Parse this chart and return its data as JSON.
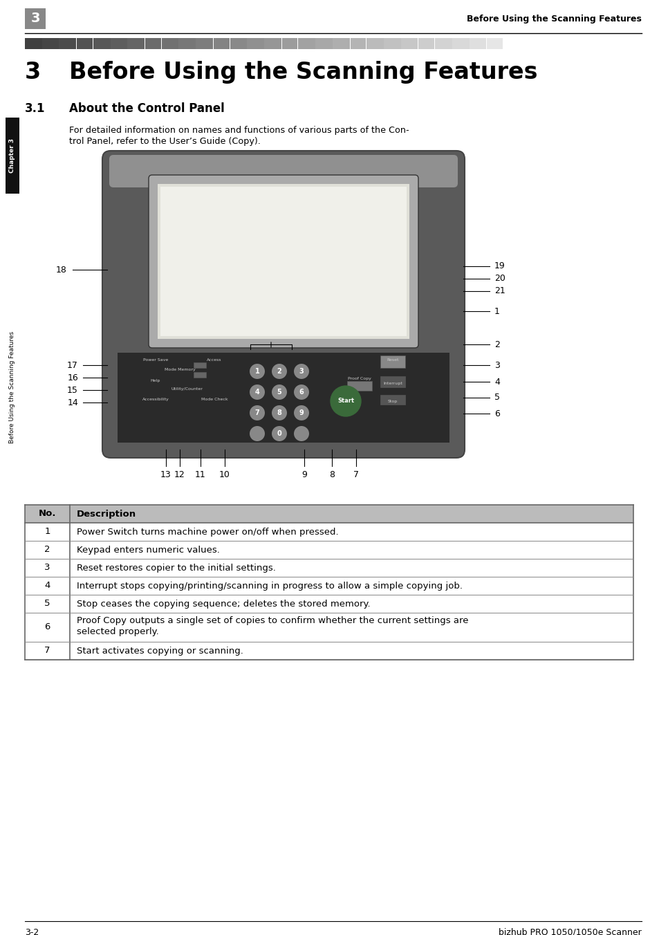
{
  "header_chapter_num": "3",
  "header_title": "Before Using the Scanning Features",
  "chapter_num": "3",
  "chapter_title": "Before Using the Scanning Features",
  "section_num": "3.1",
  "section_title": "About the Control Panel",
  "section_body_line1": "For detailed information on names and functions of various parts of the Con-",
  "section_body_line2": "trol Panel, refer to the User’s Guide (Copy).",
  "footer_left": "3-2",
  "footer_right": "bizhub PRO 1050/1050e Scanner",
  "sidebar_text": "Before Using the Scanning Features",
  "sidebar_chapter": "Chapter 3",
  "table_headers": [
    "No.",
    "Description"
  ],
  "table_rows": [
    [
      "1",
      "Power Switch turns machine power on/off when pressed."
    ],
    [
      "2",
      "Keypad enters numeric values."
    ],
    [
      "3",
      "Reset restores copier to the initial settings."
    ],
    [
      "4",
      "Interrupt stops copying/printing/scanning in progress to allow a simple copying job."
    ],
    [
      "5",
      "Stop ceases the copying sequence; deletes the stored memory."
    ],
    [
      "6",
      "Proof Copy outputs a single set of copies to confirm whether the current settings are\nselected properly."
    ],
    [
      "7",
      "Start activates copying or scanning."
    ]
  ],
  "bg_color": "#ffffff",
  "chapter_box_color": "#888888",
  "sidebar_chapter_bg": "#111111",
  "sidebar_main_bg": "#ffffff",
  "table_header_bg": "#bbbbbb",
  "table_border": "#666666",
  "panel_body_color": "#5a5a5a",
  "panel_top_color": "#888888",
  "screen_color": "#c8c8c8",
  "screen_inner_color": "#e8e8e2",
  "keypad_bg": "#333333"
}
